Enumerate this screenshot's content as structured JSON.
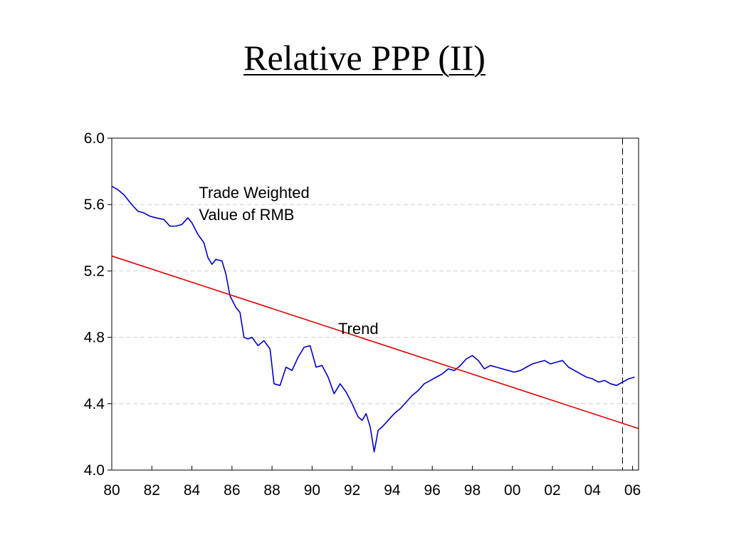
{
  "slide": {
    "title": "Relative PPP (II)"
  },
  "chart_data": {
    "type": "line",
    "title": "",
    "xlabel": "",
    "ylabel": "",
    "xlim": [
      1980,
      2006.3
    ],
    "ylim": [
      4.0,
      6.0
    ],
    "y_ticks": [
      "4.0",
      "4.4",
      "4.8",
      "5.2",
      "5.6",
      "6.0"
    ],
    "y_tick_values": [
      4.0,
      4.4,
      4.8,
      5.2,
      5.6,
      6.0
    ],
    "x_ticks": [
      "80",
      "82",
      "84",
      "86",
      "88",
      "90",
      "92",
      "94",
      "96",
      "98",
      "00",
      "02",
      "04",
      "06"
    ],
    "x_tick_values": [
      1980,
      1982,
      1984,
      1986,
      1988,
      1990,
      1992,
      1994,
      1996,
      1998,
      2000,
      2002,
      2004,
      2006
    ],
    "grid": "horizontal-dashed",
    "colors": {
      "series": "#0000cc",
      "trend": "#e00000",
      "grid": "#d0d0d0",
      "vline": "#000000"
    },
    "vertical_line_x": 2005.5,
    "annotations": [
      {
        "lines": [
          "Trade Weighted",
          "Value of RMB"
        ],
        "x": 1984.35,
        "y": 5.64
      },
      {
        "lines": [
          "Trend"
        ],
        "x": 1991.3,
        "y": 4.82
      }
    ],
    "series": [
      {
        "x": [
          1980.0,
          1980.3,
          1980.6,
          1981.0,
          1981.3,
          1981.6,
          1981.9,
          1982.2,
          1982.6,
          1982.9,
          1983.2,
          1983.5,
          1983.8,
          1984.0,
          1984.3,
          1984.6,
          1984.8,
          1985.0,
          1985.2,
          1985.5,
          1985.7,
          1985.9,
          1986.2,
          1986.4,
          1986.6,
          1986.8,
          1987.0,
          1987.3,
          1987.6,
          1987.9,
          1988.1,
          1988.4,
          1988.7,
          1989.0,
          1989.3,
          1989.6,
          1989.9,
          1990.2,
          1990.5,
          1990.8,
          1991.1,
          1991.4,
          1991.7,
          1992.0,
          1992.3,
          1992.5,
          1992.7,
          1992.9,
          1993.1,
          1993.3,
          1993.5,
          1993.8,
          1994.1,
          1994.4,
          1994.7,
          1995.0,
          1995.3,
          1995.6,
          1995.9,
          1996.2,
          1996.5,
          1996.8,
          1997.1,
          1997.4,
          1997.7,
          1998.0,
          1998.3,
          1998.6,
          1998.9,
          1999.2,
          1999.5,
          1999.8,
          2000.1,
          2000.4,
          2000.7,
          2001.0,
          2001.3,
          2001.6,
          2001.9,
          2002.2,
          2002.5,
          2002.8,
          2003.1,
          2003.4,
          2003.7,
          2004.0,
          2004.3,
          2004.6,
          2004.9,
          2005.2,
          2005.5,
          2005.8,
          2006.1
        ],
        "y": [
          5.71,
          5.69,
          5.66,
          5.6,
          5.56,
          5.55,
          5.53,
          5.52,
          5.51,
          5.47,
          5.47,
          5.48,
          5.52,
          5.49,
          5.42,
          5.37,
          5.28,
          5.24,
          5.27,
          5.26,
          5.18,
          5.05,
          4.98,
          4.95,
          4.8,
          4.79,
          4.8,
          4.75,
          4.78,
          4.73,
          4.52,
          4.51,
          4.62,
          4.6,
          4.68,
          4.74,
          4.75,
          4.62,
          4.63,
          4.56,
          4.46,
          4.52,
          4.47,
          4.4,
          4.32,
          4.3,
          4.34,
          4.26,
          4.11,
          4.24,
          4.26,
          4.3,
          4.34,
          4.37,
          4.41,
          4.45,
          4.48,
          4.52,
          4.54,
          4.56,
          4.58,
          4.61,
          4.6,
          4.63,
          4.67,
          4.69,
          4.66,
          4.61,
          4.63,
          4.62,
          4.61,
          4.6,
          4.59,
          4.6,
          4.62,
          4.64,
          4.65,
          4.66,
          4.64,
          4.65,
          4.66,
          4.62,
          4.6,
          4.58,
          4.56,
          4.55,
          4.53,
          4.54,
          4.52,
          4.51,
          4.53,
          4.55,
          4.56
        ]
      },
      {
        "x": [
          1980.0,
          2006.3
        ],
        "y": [
          5.29,
          4.25
        ]
      }
    ]
  }
}
